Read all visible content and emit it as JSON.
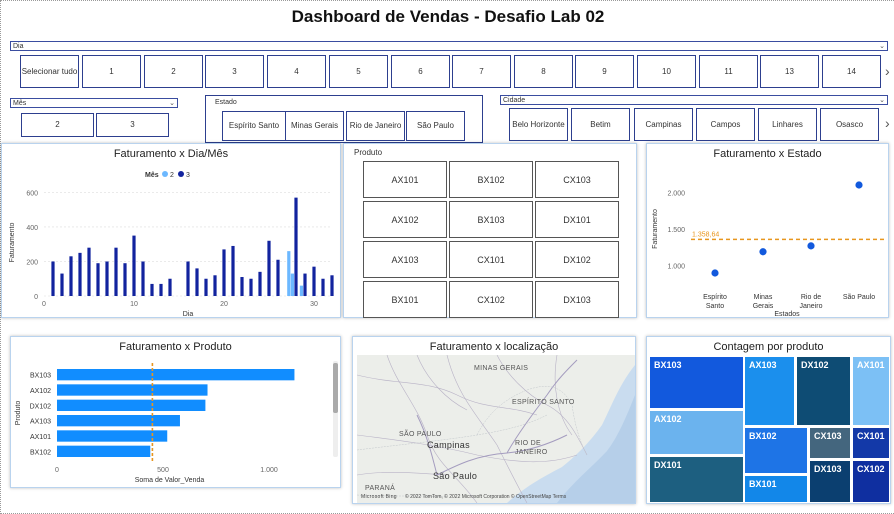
{
  "title": "Dashboard de Vendas - Desafio Lab 02",
  "dia_slicer": {
    "label": "Dia",
    "buttons": [
      "Selecionar tudo",
      "1",
      "2",
      "3",
      "4",
      "5",
      "6",
      "7",
      "8",
      "9",
      "10",
      "11",
      "13",
      "14"
    ]
  },
  "mes_slicer": {
    "label": "Mês",
    "buttons": [
      "2",
      "3"
    ]
  },
  "estado_slicer": {
    "label": "Estado",
    "buttons": [
      "Espírito Santo",
      "Minas Gerais",
      "Rio de Janeiro",
      "São Paulo"
    ]
  },
  "cidade_slicer": {
    "label": "Cidade",
    "buttons": [
      "Belo Horizonte",
      "Betim",
      "Campinas",
      "Campos",
      "Linhares",
      "Osasco"
    ]
  },
  "produto_slicer": {
    "label": "Produto",
    "cells": [
      "AX101",
      "BX102",
      "CX103",
      "AX102",
      "BX103",
      "DX101",
      "AX103",
      "CX101",
      "DX102",
      "BX101",
      "CX102",
      "DX103"
    ]
  },
  "colors": {
    "accent": "#118dff",
    "dark_blue": "#12239e",
    "light_blue": "#6cb8ff",
    "orange": "#e8961e",
    "slicer_border": "#2d3f8f"
  },
  "charts": [
    {
      "id": "dia_mes",
      "title": "Faturamento x Dia/Mês",
      "type": "bar",
      "legend_title": "Mês",
      "legend": [
        "2",
        "3"
      ],
      "xlabel": "Dia",
      "ylabel": "Faturamento",
      "xticks": [
        "0",
        "10",
        "20",
        "30"
      ],
      "yticks": [
        "0",
        "200",
        "400",
        "600"
      ],
      "xlim": [
        0,
        32
      ],
      "ylim": [
        0,
        620
      ],
      "series": [
        {
          "name": "2",
          "points": [
            [
              27.2,
              260
            ],
            [
              27.6,
              130
            ],
            [
              28.6,
              60
            ]
          ]
        },
        {
          "name": "3",
          "points": [
            [
              1,
              200
            ],
            [
              2,
              130
            ],
            [
              3,
              230
            ],
            [
              4,
              250
            ],
            [
              5,
              280
            ],
            [
              6,
              190
            ],
            [
              7,
              200
            ],
            [
              8,
              280
            ],
            [
              9,
              190
            ],
            [
              10,
              350
            ],
            [
              11,
              200
            ],
            [
              12,
              70
            ],
            [
              13,
              70
            ],
            [
              14,
              100
            ],
            [
              16,
              200
            ],
            [
              17,
              160
            ],
            [
              18,
              100
            ],
            [
              19,
              120
            ],
            [
              20,
              270
            ],
            [
              21,
              290
            ],
            [
              22,
              110
            ],
            [
              23,
              100
            ],
            [
              24,
              140
            ],
            [
              25,
              320
            ],
            [
              26,
              210
            ],
            [
              28,
              570
            ],
            [
              29,
              130
            ],
            [
              30,
              170
            ],
            [
              31,
              100
            ],
            [
              32,
              120
            ]
          ]
        }
      ]
    },
    {
      "id": "estado",
      "title": "Faturamento x Estado",
      "type": "scatter",
      "xlabel": "Estados",
      "ylabel": "Faturamento",
      "categories": [
        "Espírito Santo",
        "Minas Gerais",
        "Rio de Janeiro",
        "São Paulo"
      ],
      "values": [
        900,
        1190,
        1270,
        2100
      ],
      "avg_label": "1.358,64",
      "avg": 1358.64,
      "yticks": [
        "1.000",
        "1.500",
        "2.000"
      ],
      "ylim": [
        750,
        2250
      ]
    },
    {
      "id": "produto",
      "title": "Faturamento x Produto",
      "type": "bar",
      "xlabel": "Soma de Valor_Venda",
      "ylabel": "Produto",
      "categories": [
        "BX103",
        "AX102",
        "DX102",
        "AX103",
        "AX101",
        "BX102"
      ],
      "values": [
        1120,
        710,
        700,
        580,
        520,
        440
      ],
      "xticks": [
        "0",
        "500",
        "1.000"
      ],
      "xlim": [
        0,
        1250
      ],
      "ref_value": 450
    }
  ],
  "map_panel": {
    "title": "Faturamento x localização",
    "labels": [
      "MINAS GERAIS",
      "ESPÍRITO SANTO",
      "SÃO PAULO",
      "Campinas",
      "RIO DE JANEIRO",
      "São Paulo",
      "PARANÁ"
    ],
    "attribution": "© 2022 TomTom, © 2022 Microsoft Corporation © OpenStreetMap  Terms",
    "logo": "Microsoft Bing"
  },
  "treemap": {
    "title": "Contagem por produto",
    "items": [
      "BX103",
      "AX103",
      "DX102",
      "AX101",
      "AX102",
      "BX102",
      "CX103",
      "CX101",
      "DX101",
      "BX101",
      "DX103",
      "CX102"
    ]
  }
}
